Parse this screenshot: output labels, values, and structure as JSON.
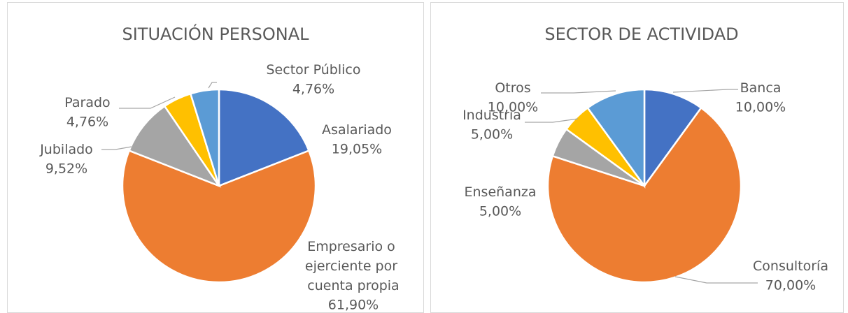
{
  "chart_data": [
    {
      "type": "pie",
      "title": "SITUACIÓN PERSONAL",
      "categories": [
        "Asalariado",
        "Empresario o ejerciente por cuenta propia",
        "Jubilado",
        "Parado",
        "Sector Público"
      ],
      "values": [
        19.05,
        61.9,
        9.52,
        4.76,
        4.76
      ],
      "value_labels": [
        "19,05%",
        "61,90%",
        "9,52%",
        "4,76%",
        "4,76%"
      ],
      "colors": [
        "#4472c4",
        "#ed7d31",
        "#a5a5a5",
        "#ffc000",
        "#5b9bd5"
      ]
    },
    {
      "type": "pie",
      "title": "SECTOR DE ACTIVIDAD",
      "categories": [
        "Banca",
        "Consultoría",
        "Enseñanza",
        "Industria",
        "Otros"
      ],
      "values": [
        10.0,
        70.0,
        5.0,
        5.0,
        10.0
      ],
      "value_labels": [
        "10,00%",
        "70,00%",
        "5,00%",
        "5,00%",
        "10,00%"
      ],
      "colors": [
        "#4472c4",
        "#ed7d31",
        "#a5a5a5",
        "#ffc000",
        "#5b9bd5"
      ]
    }
  ]
}
